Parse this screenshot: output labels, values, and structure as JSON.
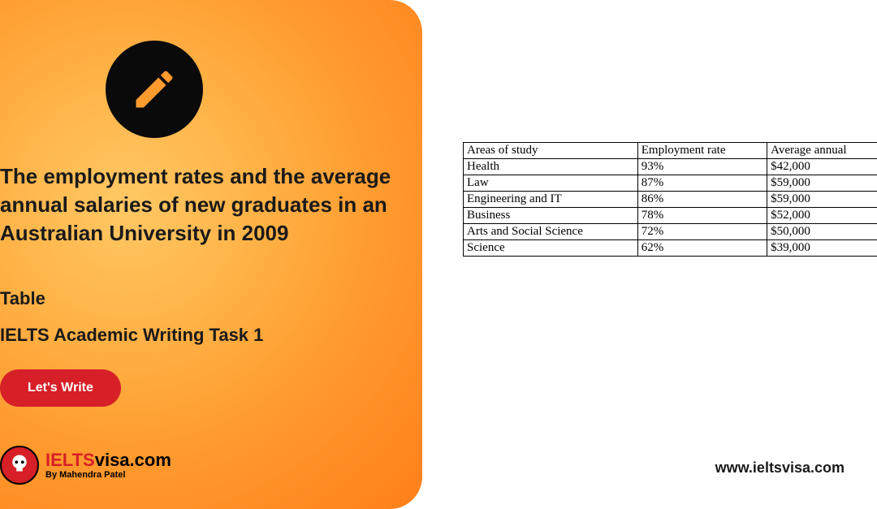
{
  "headline": "The employment rates and the average annual salaries of new graduates in an Australian University in 2009",
  "subtitle_type": "Table",
  "subtitle_task": "IELTS Academic Writing Task 1",
  "cta_label": "Let's Write",
  "logo": {
    "brand_red": "IELTS",
    "brand_black": "visa.com",
    "byline": "By Mahendra Patel"
  },
  "website": "www.ieltsvisa.com",
  "colors": {
    "gradient_inner": "#ffc864",
    "gradient_outer": "#ff7f1a",
    "icon_bg": "#0a0a0a",
    "cta_bg": "#d61f26",
    "text": "#1a1a1a",
    "table_border": "#000000"
  },
  "table": {
    "columns": [
      "Areas of study",
      "Employment rate",
      "Average annual"
    ],
    "rows": [
      [
        "Health",
        "93%",
        "$42,000"
      ],
      [
        "Law",
        "87%",
        "$59,000"
      ],
      [
        "Engineering and IT",
        "86%",
        "$59,000"
      ],
      [
        "Business",
        "78%",
        "$52,000"
      ],
      [
        "Arts and Social Science",
        "72%",
        "$50,000"
      ],
      [
        "Science",
        "62%",
        "$39,000"
      ]
    ]
  }
}
